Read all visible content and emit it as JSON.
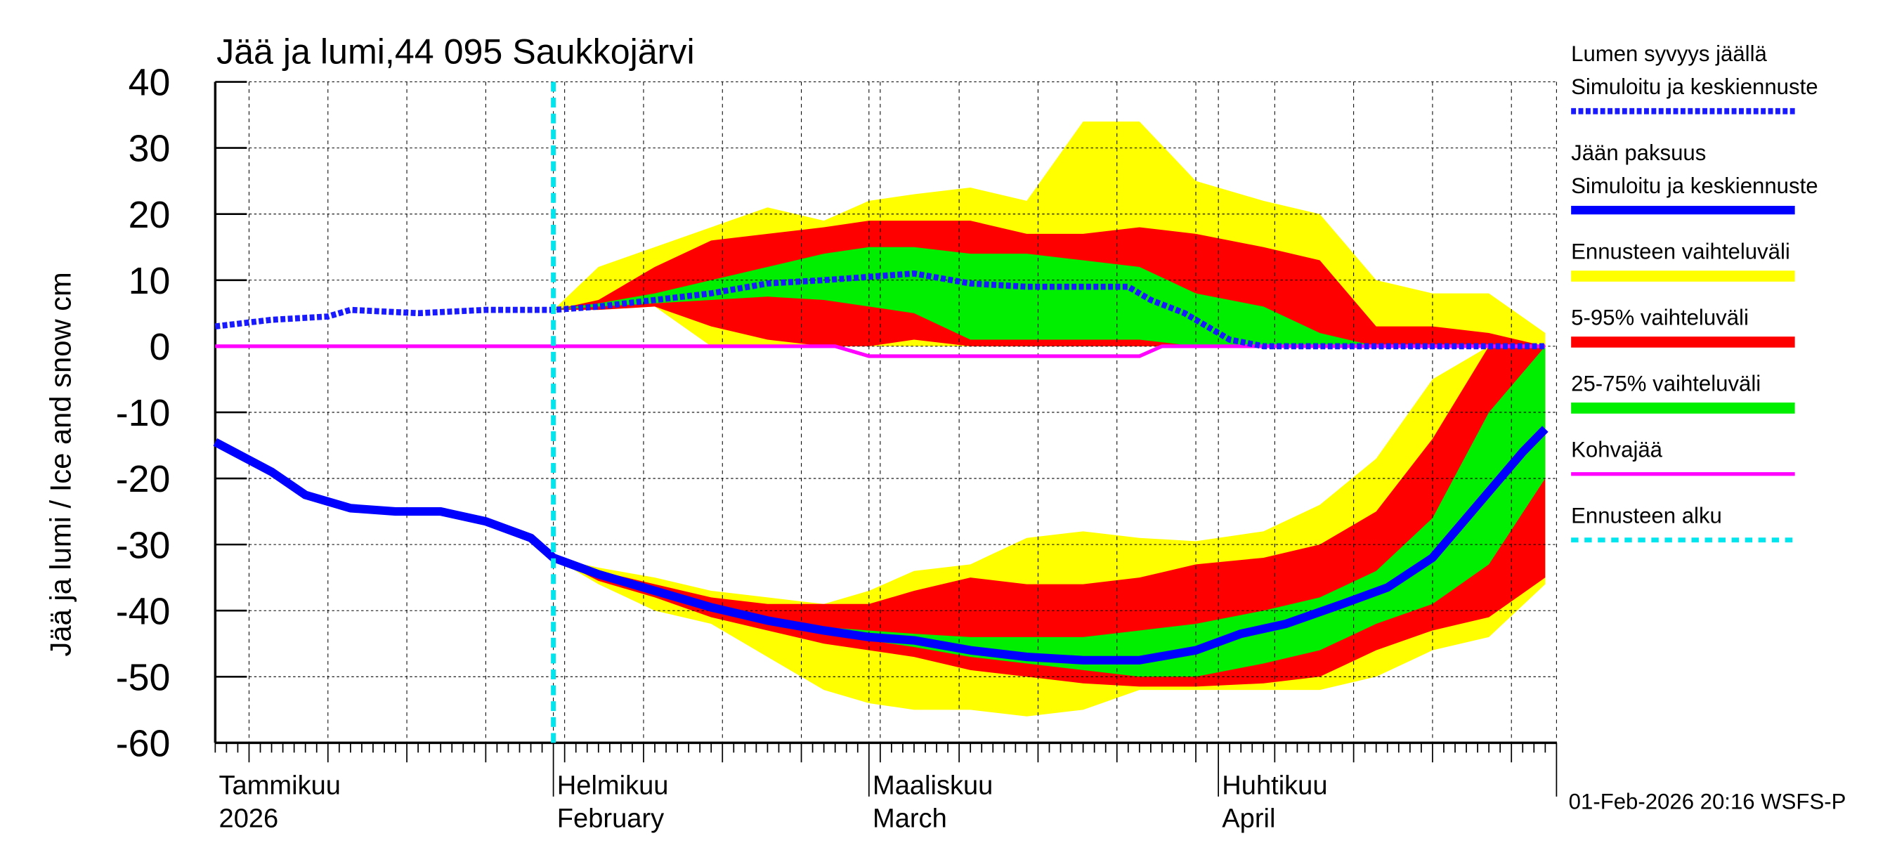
{
  "chart_data": {
    "type": "area",
    "title": "Jää ja lumi,44 095 Saukkojärvi",
    "ylabel": "Jää ja lumi / Ice and snow    cm",
    "ylim": [
      -60,
      40
    ],
    "yticks": [
      40,
      30,
      20,
      10,
      0,
      -10,
      -20,
      -30,
      -40,
      -50,
      -60
    ],
    "xlim": [
      "2026-01-02",
      "2026-05-01"
    ],
    "grid": true,
    "legend_placement": "right",
    "month_labels": [
      {
        "date": "2026-01-01",
        "fi": "Tammikuu",
        "en": "2026"
      },
      {
        "date": "2026-02-01",
        "fi": "Helmikuu",
        "en": "February"
      },
      {
        "date": "2026-03-01",
        "fi": "Maaliskuu",
        "en": "March"
      },
      {
        "date": "2026-04-01",
        "fi": "Huhtikuu",
        "en": "April"
      }
    ],
    "forecast_start": "2026-02-01",
    "colors": {
      "snow": "#1a1aff",
      "ice": "#0000ff",
      "range": "#ffff00",
      "p5_95": "#ff0000",
      "p25_75": "#00ee00",
      "slush": "#ff00ff",
      "forecast_start": "#00e5ee"
    },
    "legend": [
      {
        "label1": "Lumen syvyys jäällä",
        "label2": "Simuloitu ja keskiennuste",
        "color": "#1a1aff",
        "style": "dotted"
      },
      {
        "label1": "Jään paksuus",
        "label2": "Simuloitu ja keskiennuste",
        "color": "#0000ff",
        "style": "solid"
      },
      {
        "label1": "Ennusteen vaihteluväli",
        "color": "#ffff00",
        "style": "band"
      },
      {
        "label1": "5-95% vaihteluväli",
        "color": "#ff0000",
        "style": "band"
      },
      {
        "label1": "25-75% vaihteluväli",
        "color": "#00ee00",
        "style": "band"
      },
      {
        "label1": "Kohvajää",
        "color": "#ff00ff",
        "style": "line"
      },
      {
        "label1": "Ennusteen alku",
        "color": "#00e5ee",
        "style": "dashed"
      }
    ],
    "snow_depth": {
      "dates": [
        "2026-01-02",
        "2026-01-07",
        "2026-01-12",
        "2026-01-14",
        "2026-01-20",
        "2026-01-26",
        "2026-02-01",
        "2026-02-05",
        "2026-02-10",
        "2026-02-15",
        "2026-02-20",
        "2026-02-25",
        "2026-03-01",
        "2026-03-05",
        "2026-03-10",
        "2026-03-15",
        "2026-03-20",
        "2026-03-24",
        "2026-03-26",
        "2026-03-29",
        "2026-04-02",
        "2026-04-05",
        "2026-04-30"
      ],
      "values": [
        3,
        4,
        4.5,
        5.5,
        5,
        5.5,
        5.5,
        6,
        7,
        8,
        9.5,
        10,
        10.5,
        11,
        9.5,
        9,
        9,
        9,
        7,
        5,
        1,
        0,
        0
      ]
    },
    "ice_thickness": {
      "dates": [
        "2026-01-02",
        "2026-01-07",
        "2026-01-10",
        "2026-01-14",
        "2026-01-18",
        "2026-01-22",
        "2026-01-26",
        "2026-01-30",
        "2026-02-01",
        "2026-02-05",
        "2026-02-10",
        "2026-02-15",
        "2026-02-20",
        "2026-02-25",
        "2026-03-01",
        "2026-03-05",
        "2026-03-10",
        "2026-03-15",
        "2026-03-20",
        "2026-03-25",
        "2026-03-30",
        "2026-04-03",
        "2026-04-07",
        "2026-04-12",
        "2026-04-16",
        "2026-04-20",
        "2026-04-24",
        "2026-04-28",
        "2026-04-30"
      ],
      "values": [
        -14.5,
        -19,
        -22.5,
        -24.5,
        -25,
        -25,
        -26.5,
        -29,
        -32,
        -34.5,
        -37,
        -39.5,
        -41.5,
        -43,
        -44,
        -44.5,
        -46,
        -47,
        -47.5,
        -47.5,
        -46,
        -43.5,
        -42,
        -39,
        -36.5,
        -32,
        -24,
        -16,
        -12.5
      ]
    },
    "band_dates": [
      "2026-02-01",
      "2026-02-05",
      "2026-02-10",
      "2026-02-15",
      "2026-02-20",
      "2026-02-25",
      "2026-03-01",
      "2026-03-05",
      "2026-03-10",
      "2026-03-15",
      "2026-03-20",
      "2026-03-25",
      "2026-03-30",
      "2026-04-05",
      "2026-04-10",
      "2026-04-15",
      "2026-04-20",
      "2026-04-25",
      "2026-04-30"
    ],
    "snow_bands": {
      "range": [
        [
          5.5,
          5.5
        ],
        [
          5.5,
          12
        ],
        [
          6,
          15
        ],
        [
          0,
          18
        ],
        [
          0,
          21
        ],
        [
          0,
          19
        ],
        [
          0,
          22
        ],
        [
          0,
          23
        ],
        [
          0,
          24
        ],
        [
          0,
          22
        ],
        [
          0,
          34
        ],
        [
          0,
          34
        ],
        [
          0,
          25
        ],
        [
          0,
          22
        ],
        [
          0,
          20
        ],
        [
          0,
          10
        ],
        [
          0,
          8
        ],
        [
          0,
          8
        ],
        [
          0,
          2
        ]
      ],
      "p5_95": [
        [
          5.5,
          5.5
        ],
        [
          5.5,
          7
        ],
        [
          6,
          12
        ],
        [
          3,
          16
        ],
        [
          1,
          17
        ],
        [
          0,
          18
        ],
        [
          0,
          19
        ],
        [
          1,
          19
        ],
        [
          0,
          19
        ],
        [
          0,
          17
        ],
        [
          0,
          17
        ],
        [
          0,
          18
        ],
        [
          0,
          17
        ],
        [
          0,
          15
        ],
        [
          0,
          13
        ],
        [
          0,
          3
        ],
        [
          0,
          3
        ],
        [
          0,
          2
        ],
        [
          0,
          0
        ]
      ],
      "p25_75": [
        [
          5.5,
          5.5
        ],
        [
          6,
          6.5
        ],
        [
          6.5,
          8
        ],
        [
          7,
          10
        ],
        [
          7.5,
          12
        ],
        [
          7,
          14
        ],
        [
          6,
          15
        ],
        [
          5,
          15
        ],
        [
          1,
          14
        ],
        [
          1,
          14
        ],
        [
          1,
          13
        ],
        [
          1,
          12
        ],
        [
          0,
          8
        ],
        [
          0,
          6
        ],
        [
          0,
          2
        ],
        [
          0,
          0
        ],
        [
          0,
          0
        ],
        [
          0,
          0
        ],
        [
          0,
          0
        ]
      ]
    },
    "ice_bands": {
      "range": [
        [
          -32,
          -32
        ],
        [
          -36,
          -33.5
        ],
        [
          -40,
          -35
        ],
        [
          -42,
          -37
        ],
        [
          -47,
          -38
        ],
        [
          -52,
          -39
        ],
        [
          -54,
          -37
        ],
        [
          -55,
          -34
        ],
        [
          -55,
          -33
        ],
        [
          -56,
          -29
        ],
        [
          -55,
          -28
        ],
        [
          -52,
          -29
        ],
        [
          -52,
          -29.5
        ],
        [
          -52,
          -28
        ],
        [
          -52,
          -24
        ],
        [
          -50,
          -17
        ],
        [
          -46,
          -5
        ],
        [
          -44,
          0
        ],
        [
          -36,
          0
        ]
      ],
      "p5_95": [
        [
          -32,
          -32
        ],
        [
          -35.5,
          -34
        ],
        [
          -38,
          -36
        ],
        [
          -41,
          -38
        ],
        [
          -43,
          -39
        ],
        [
          -45,
          -39
        ],
        [
          -46,
          -39
        ],
        [
          -47,
          -37
        ],
        [
          -49,
          -35
        ],
        [
          -50,
          -36
        ],
        [
          -51,
          -36
        ],
        [
          -51.5,
          -35
        ],
        [
          -51.5,
          -33
        ],
        [
          -51,
          -32
        ],
        [
          -50,
          -30
        ],
        [
          -46,
          -25
        ],
        [
          -43,
          -14
        ],
        [
          -41,
          0
        ],
        [
          -35,
          0
        ]
      ],
      "p25_75": [
        [
          -32,
          -32
        ],
        [
          -35,
          -34.5
        ],
        [
          -37.5,
          -36.5
        ],
        [
          -40,
          -39
        ],
        [
          -42,
          -41
        ],
        [
          -43.5,
          -42.5
        ],
        [
          -44.5,
          -43
        ],
        [
          -45.5,
          -43.5
        ],
        [
          -47,
          -44
        ],
        [
          -48,
          -44
        ],
        [
          -49,
          -44
        ],
        [
          -50,
          -43
        ],
        [
          -50,
          -42
        ],
        [
          -48,
          -40
        ],
        [
          -46,
          -38
        ],
        [
          -42,
          -34
        ],
        [
          -39,
          -26
        ],
        [
          -33,
          -10
        ],
        [
          -20,
          0
        ]
      ]
    },
    "slush_ice": {
      "dates": [
        "2026-01-02",
        "2026-02-26",
        "2026-03-01",
        "2026-03-25",
        "2026-03-27",
        "2026-04-30"
      ],
      "values": [
        0,
        0,
        -1.5,
        -1.5,
        0,
        0
      ]
    }
  },
  "footer": {
    "timestamp": "01-Feb-2026 20:16 WSFS-P"
  }
}
